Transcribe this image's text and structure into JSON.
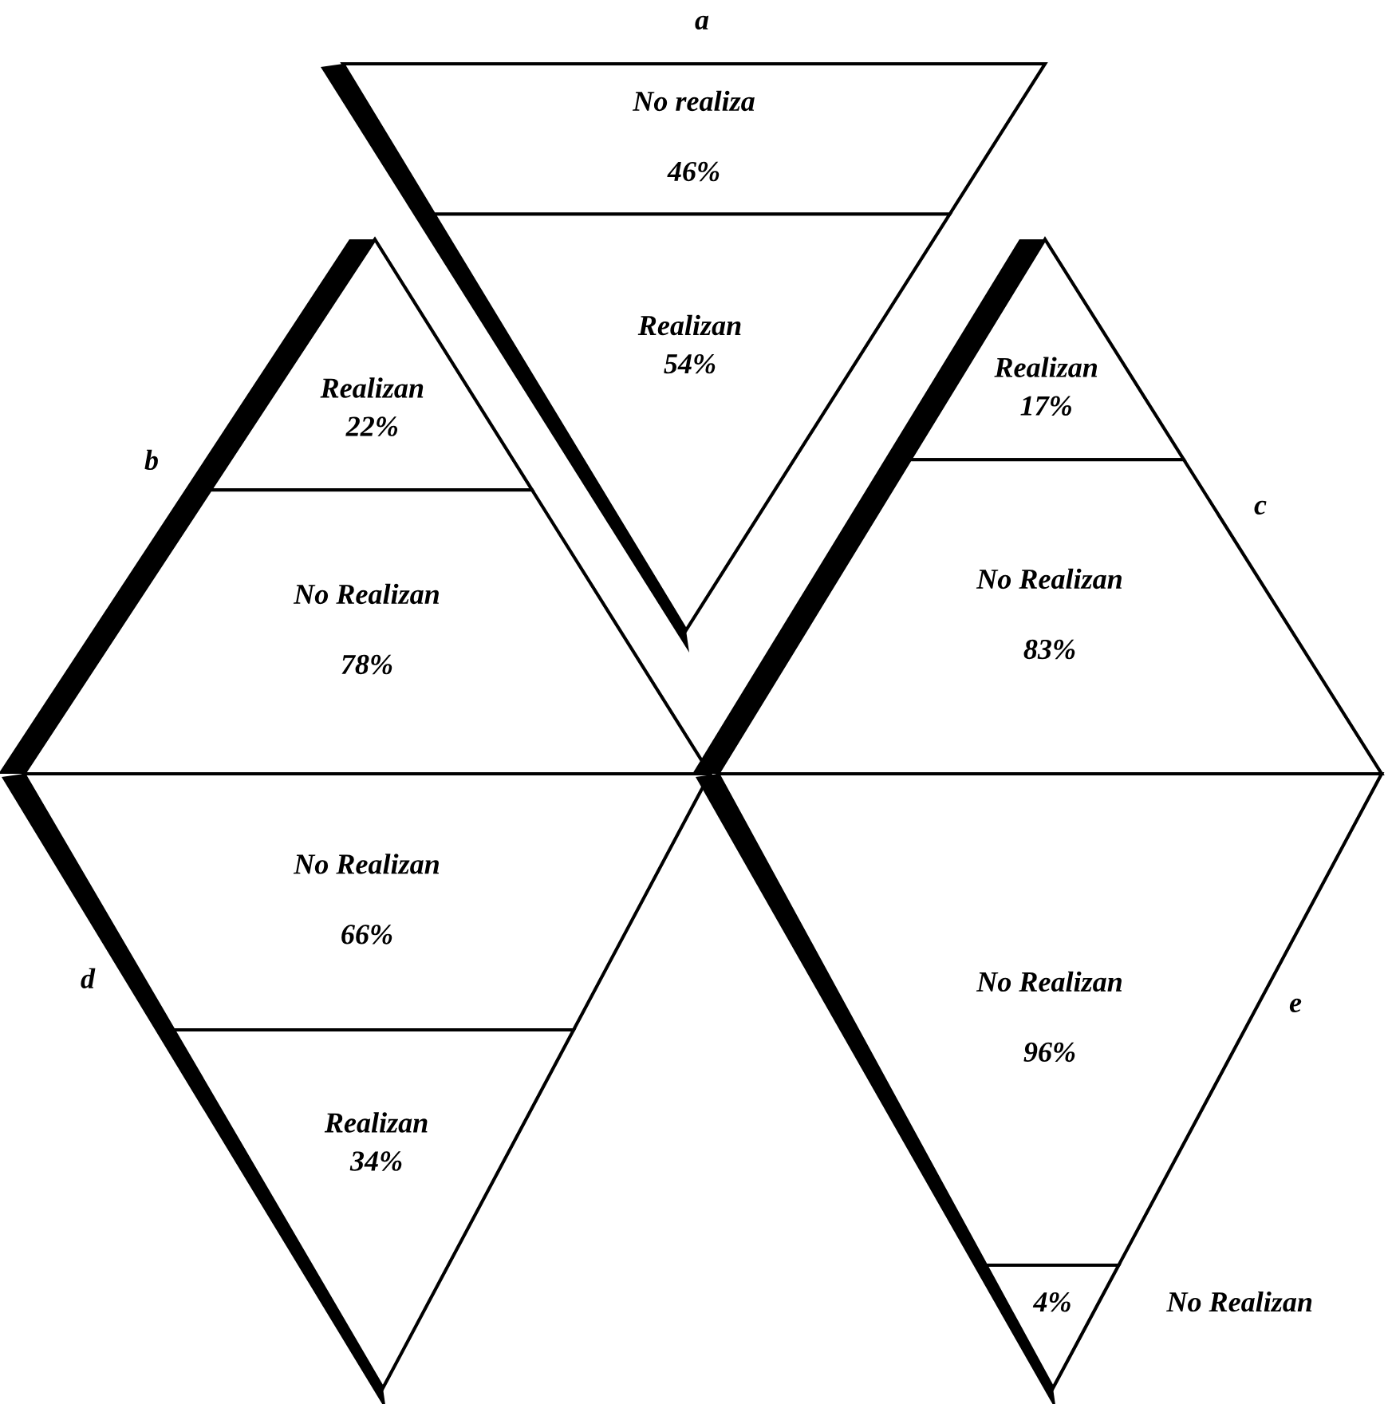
{
  "chart_data": [
    {
      "type": "other",
      "title": "a",
      "categories": [
        "No realiza",
        "Realizan"
      ],
      "values": [
        46,
        54
      ],
      "value_labels": [
        "46%",
        "54%"
      ]
    },
    {
      "type": "other",
      "title": "b",
      "categories": [
        "Realizan",
        "No Realizan"
      ],
      "values": [
        22,
        78
      ],
      "value_labels": [
        "22%",
        "78%"
      ]
    },
    {
      "type": "other",
      "title": "c",
      "categories": [
        "Realizan",
        "No Realizan"
      ],
      "values": [
        17,
        83
      ],
      "value_labels": [
        "17%",
        "83%"
      ]
    },
    {
      "type": "other",
      "title": "d",
      "categories": [
        "No Realizan",
        "Realizan"
      ],
      "values": [
        66,
        34
      ],
      "value_labels": [
        "66%",
        "34%"
      ]
    },
    {
      "type": "other",
      "title": "e",
      "categories": [
        "No Realizan",
        "No Realizan"
      ],
      "values": [
        96,
        4
      ],
      "value_labels": [
        "96%",
        "4%"
      ]
    }
  ]
}
